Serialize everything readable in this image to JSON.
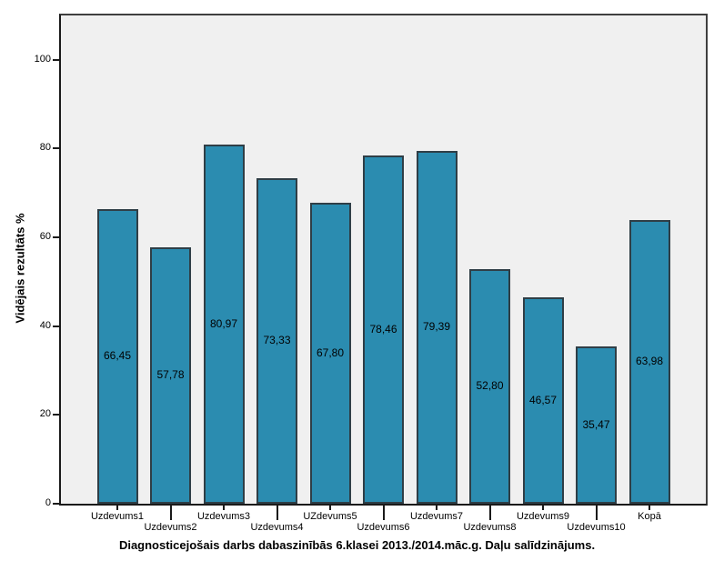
{
  "chart_data": {
    "type": "bar",
    "title": "Diagnosticejošais darbs dabaszinībās 6.klasei 2013./2014.māc.g. Daļu salīdzinājums.",
    "ylabel": "Vidējais rezultāts %",
    "xlabel": "",
    "categories": [
      "Uzdevums1",
      "Uzdevums2",
      "Uzdevums3",
      "Uzdevums4",
      "UZdevums5",
      "Uzdevums6",
      "Uzdevums7",
      "Uzdevums8",
      "Uzdevums9",
      "Uzdevums10",
      "Kopā"
    ],
    "values": [
      66.45,
      57.78,
      80.97,
      73.33,
      67.8,
      78.46,
      79.39,
      52.8,
      46.57,
      35.47,
      63.98
    ],
    "value_labels": [
      "66,45",
      "57,78",
      "80,97",
      "73,33",
      "67,80",
      "78,46",
      "79,39",
      "52,80",
      "46,57",
      "35,47",
      "63,98"
    ],
    "yticks": [
      0,
      20,
      40,
      60,
      80,
      100
    ],
    "ylim": [
      0,
      110
    ],
    "grid": false,
    "legend": "none",
    "layout_hints": {
      "value_label_position": "center-of-bar",
      "x_labels_staggered_two_rows": true
    },
    "colors": {
      "bar_fill": "#2b8cb0",
      "bar_border": "#2f3e46",
      "plot_background": "#f0f0f0",
      "frame_border": "#3f3f3f",
      "axis_line": "#1a1a1a",
      "text": "#000000",
      "page_background": "#ffffff"
    }
  }
}
